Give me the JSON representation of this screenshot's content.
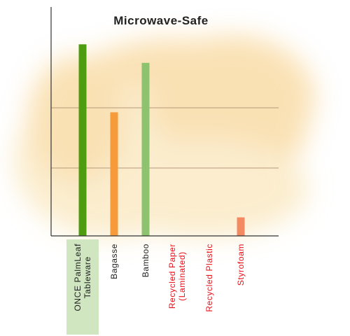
{
  "chart_data": {
    "type": "bar",
    "title": "Microwave-Safe",
    "xlabel": "",
    "ylabel": "",
    "ylim": [
      0,
      3.5
    ],
    "grid": true,
    "legend": "none",
    "categories": [
      {
        "label": [
          "ONCE PalmLeaf",
          "Tableware"
        ],
        "value": 3.1,
        "bar_color": "#4e9d10",
        "label_color": "#222222",
        "highlight": true
      },
      {
        "label": [
          "Bagasse"
        ],
        "value": 2.0,
        "bar_color": "#f79a3a",
        "label_color": "#222222",
        "highlight": false
      },
      {
        "label": [
          "Bamboo"
        ],
        "value": 2.8,
        "bar_color": "#8dc26e",
        "label_color": "#222222",
        "highlight": false
      },
      {
        "label": [
          "Recycled Paper",
          "(Laminated)"
        ],
        "value": 0,
        "bar_color": "#f28a60",
        "label_color": "#e8101a",
        "highlight": false
      },
      {
        "label": [
          "Recycled Plastic"
        ],
        "value": 0,
        "bar_color": "#f28a60",
        "label_color": "#e8101a",
        "highlight": false
      },
      {
        "label": [
          "Styrofoam"
        ],
        "value": 0.3,
        "bar_color": "#f48a62",
        "label_color": "#e8101a",
        "highlight": false
      }
    ],
    "colors": {
      "axis": "#333333",
      "grid": "#b59a7a",
      "highlight_bg": "#cfe6c0",
      "watercolor_a": "#f6c978",
      "watercolor_b": "#f8dfa6"
    }
  }
}
